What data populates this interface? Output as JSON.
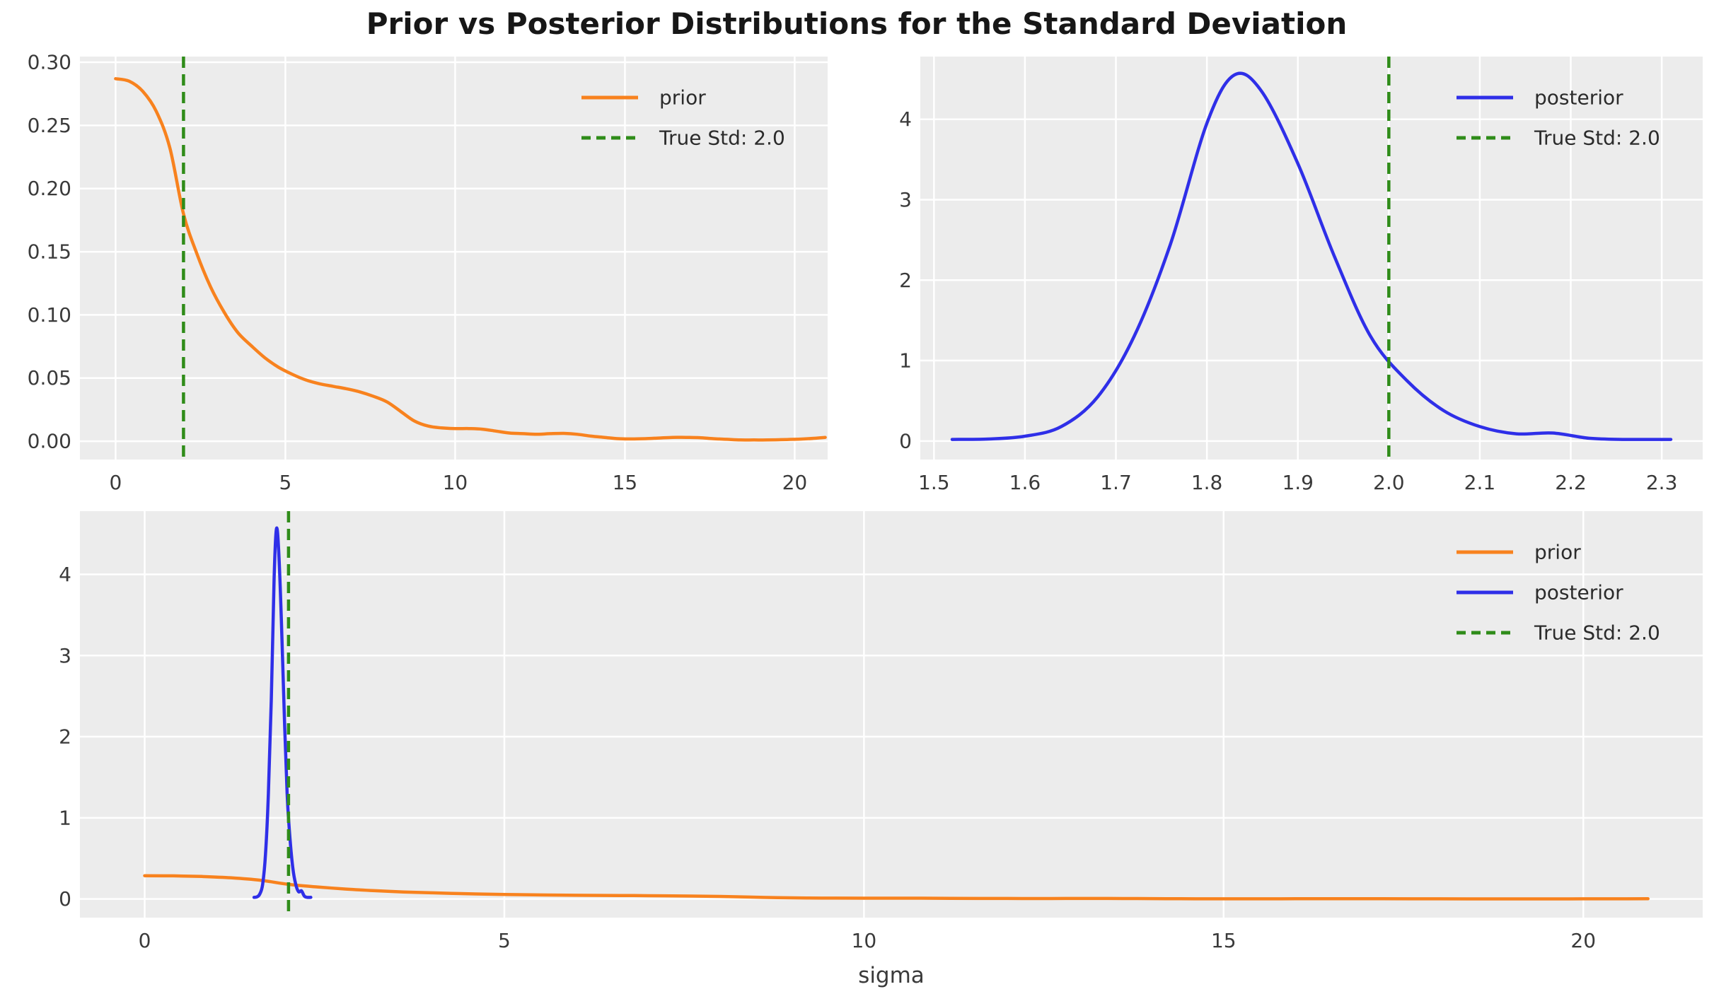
{
  "title": "Prior vs Posterior Distributions for the Standard Deviation",
  "colors": {
    "prior": "#f8821e",
    "posterior": "#2f2fe8",
    "true_std": "#2f8c19",
    "panel_bg": "#ececec",
    "grid": "#ffffff",
    "tick_label": "#3a3a3a",
    "title_color": "#171717"
  },
  "series_pool": {
    "prior": {
      "x": [
        0,
        0.4,
        0.8,
        1.2,
        1.6,
        2.0,
        2.4,
        2.8,
        3.2,
        3.6,
        4.0,
        4.4,
        4.8,
        5.2,
        5.6,
        6.0,
        6.4,
        6.8,
        7.2,
        7.6,
        8.0,
        8.4,
        8.8,
        9.2,
        9.6,
        10.0,
        10.4,
        10.8,
        11.2,
        11.6,
        12.0,
        12.4,
        12.8,
        13.2,
        13.6,
        14.0,
        14.4,
        14.8,
        15.2,
        15.6,
        16.0,
        16.4,
        16.8,
        17.2,
        17.6,
        18.0,
        18.4,
        18.8,
        19.2,
        19.6,
        20.0,
        20.4,
        20.9
      ],
      "y": [
        0.287,
        0.285,
        0.277,
        0.261,
        0.232,
        0.18,
        0.148,
        0.122,
        0.102,
        0.086,
        0.0755,
        0.066,
        0.0585,
        0.053,
        0.0485,
        0.0455,
        0.0435,
        0.0415,
        0.039,
        0.0355,
        0.031,
        0.0235,
        0.016,
        0.012,
        0.0105,
        0.01,
        0.01,
        0.0095,
        0.008,
        0.0065,
        0.006,
        0.0055,
        0.006,
        0.0062,
        0.0055,
        0.004,
        0.003,
        0.002,
        0.0018,
        0.002,
        0.0025,
        0.003,
        0.003,
        0.0028,
        0.002,
        0.0015,
        0.001,
        0.001,
        0.001,
        0.0012,
        0.0015,
        0.002,
        0.003
      ]
    },
    "posterior": {
      "x": [
        1.52,
        1.56,
        1.6,
        1.64,
        1.68,
        1.72,
        1.76,
        1.8,
        1.83,
        1.86,
        1.9,
        1.94,
        1.98,
        2.02,
        2.06,
        2.1,
        2.14,
        2.18,
        2.22,
        2.26,
        2.31
      ],
      "y": [
        0.02,
        0.025,
        0.06,
        0.18,
        0.55,
        1.3,
        2.45,
        3.95,
        4.55,
        4.35,
        3.45,
        2.3,
        1.3,
        0.75,
        0.38,
        0.18,
        0.09,
        0.1,
        0.035,
        0.02,
        0.02
      ]
    }
  },
  "true_std": {
    "value": 2.0,
    "label": "True Std: 2.0"
  },
  "chart_data": [
    {
      "id": "top_left",
      "type": "line",
      "series": [
        {
          "name": "prior",
          "data": "prior",
          "color": "prior",
          "dash": false
        }
      ],
      "vline": {
        "x": 2.0,
        "label": "True Std: 2.0",
        "color": "true_std"
      },
      "xlim": [
        -1.05,
        20.97
      ],
      "ylim": [
        -0.0145,
        0.3045
      ],
      "xticks": [
        {
          "v": 0,
          "l": "0"
        },
        {
          "v": 5,
          "l": "5"
        },
        {
          "v": 10,
          "l": "10"
        },
        {
          "v": 15,
          "l": "15"
        },
        {
          "v": 20,
          "l": "20"
        }
      ],
      "yticks": [
        {
          "v": 0.0,
          "l": "0.00"
        },
        {
          "v": 0.05,
          "l": "0.05"
        },
        {
          "v": 0.1,
          "l": "0.10"
        },
        {
          "v": 0.15,
          "l": "0.15"
        },
        {
          "v": 0.2,
          "l": "0.20"
        },
        {
          "v": 0.25,
          "l": "0.25"
        },
        {
          "v": 0.3,
          "l": "0.30"
        }
      ],
      "legend": [
        {
          "label": "prior",
          "color": "prior",
          "dash": false
        },
        {
          "label": "True Std: 2.0",
          "color": "true_std",
          "dash": true
        }
      ],
      "xlabel": "",
      "ylabel": ""
    },
    {
      "id": "top_right",
      "type": "line",
      "series": [
        {
          "name": "posterior",
          "data": "posterior",
          "color": "posterior",
          "dash": false
        }
      ],
      "vline": {
        "x": 2.0,
        "label": "True Std: 2.0",
        "color": "true_std"
      },
      "xlim": [
        1.485,
        2.345
      ],
      "ylim": [
        -0.23,
        4.78
      ],
      "xticks": [
        {
          "v": 1.5,
          "l": "1.5"
        },
        {
          "v": 1.6,
          "l": "1.6"
        },
        {
          "v": 1.7,
          "l": "1.7"
        },
        {
          "v": 1.8,
          "l": "1.8"
        },
        {
          "v": 1.9,
          "l": "1.9"
        },
        {
          "v": 2.0,
          "l": "2.0"
        },
        {
          "v": 2.1,
          "l": "2.1"
        },
        {
          "v": 2.2,
          "l": "2.2"
        },
        {
          "v": 2.3,
          "l": "2.3"
        }
      ],
      "yticks": [
        {
          "v": 0,
          "l": "0"
        },
        {
          "v": 1,
          "l": "1"
        },
        {
          "v": 2,
          "l": "2"
        },
        {
          "v": 3,
          "l": "3"
        },
        {
          "v": 4,
          "l": "4"
        }
      ],
      "legend": [
        {
          "label": "posterior",
          "color": "posterior",
          "dash": false
        },
        {
          "label": "True Std: 2.0",
          "color": "true_std",
          "dash": true
        }
      ],
      "xlabel": "",
      "ylabel": ""
    },
    {
      "id": "bottom",
      "type": "line",
      "series": [
        {
          "name": "prior",
          "data": "prior",
          "color": "prior",
          "dash": false
        },
        {
          "name": "posterior",
          "data": "posterior",
          "color": "posterior",
          "dash": false
        }
      ],
      "vline": {
        "x": 2.0,
        "label": "True Std: 2.0",
        "color": "true_std"
      },
      "xlim": [
        -0.9,
        21.66
      ],
      "ylim": [
        -0.23,
        4.78
      ],
      "xticks": [
        {
          "v": 0,
          "l": "0"
        },
        {
          "v": 5,
          "l": "5"
        },
        {
          "v": 10,
          "l": "10"
        },
        {
          "v": 15,
          "l": "15"
        },
        {
          "v": 20,
          "l": "20"
        }
      ],
      "yticks": [
        {
          "v": 0,
          "l": "0"
        },
        {
          "v": 1,
          "l": "1"
        },
        {
          "v": 2,
          "l": "2"
        },
        {
          "v": 3,
          "l": "3"
        },
        {
          "v": 4,
          "l": "4"
        }
      ],
      "legend": [
        {
          "label": "prior",
          "color": "prior",
          "dash": false
        },
        {
          "label": "posterior",
          "color": "posterior",
          "dash": false
        },
        {
          "label": "True Std: 2.0",
          "color": "true_std",
          "dash": true
        }
      ],
      "xlabel": "sigma",
      "ylabel": ""
    }
  ]
}
